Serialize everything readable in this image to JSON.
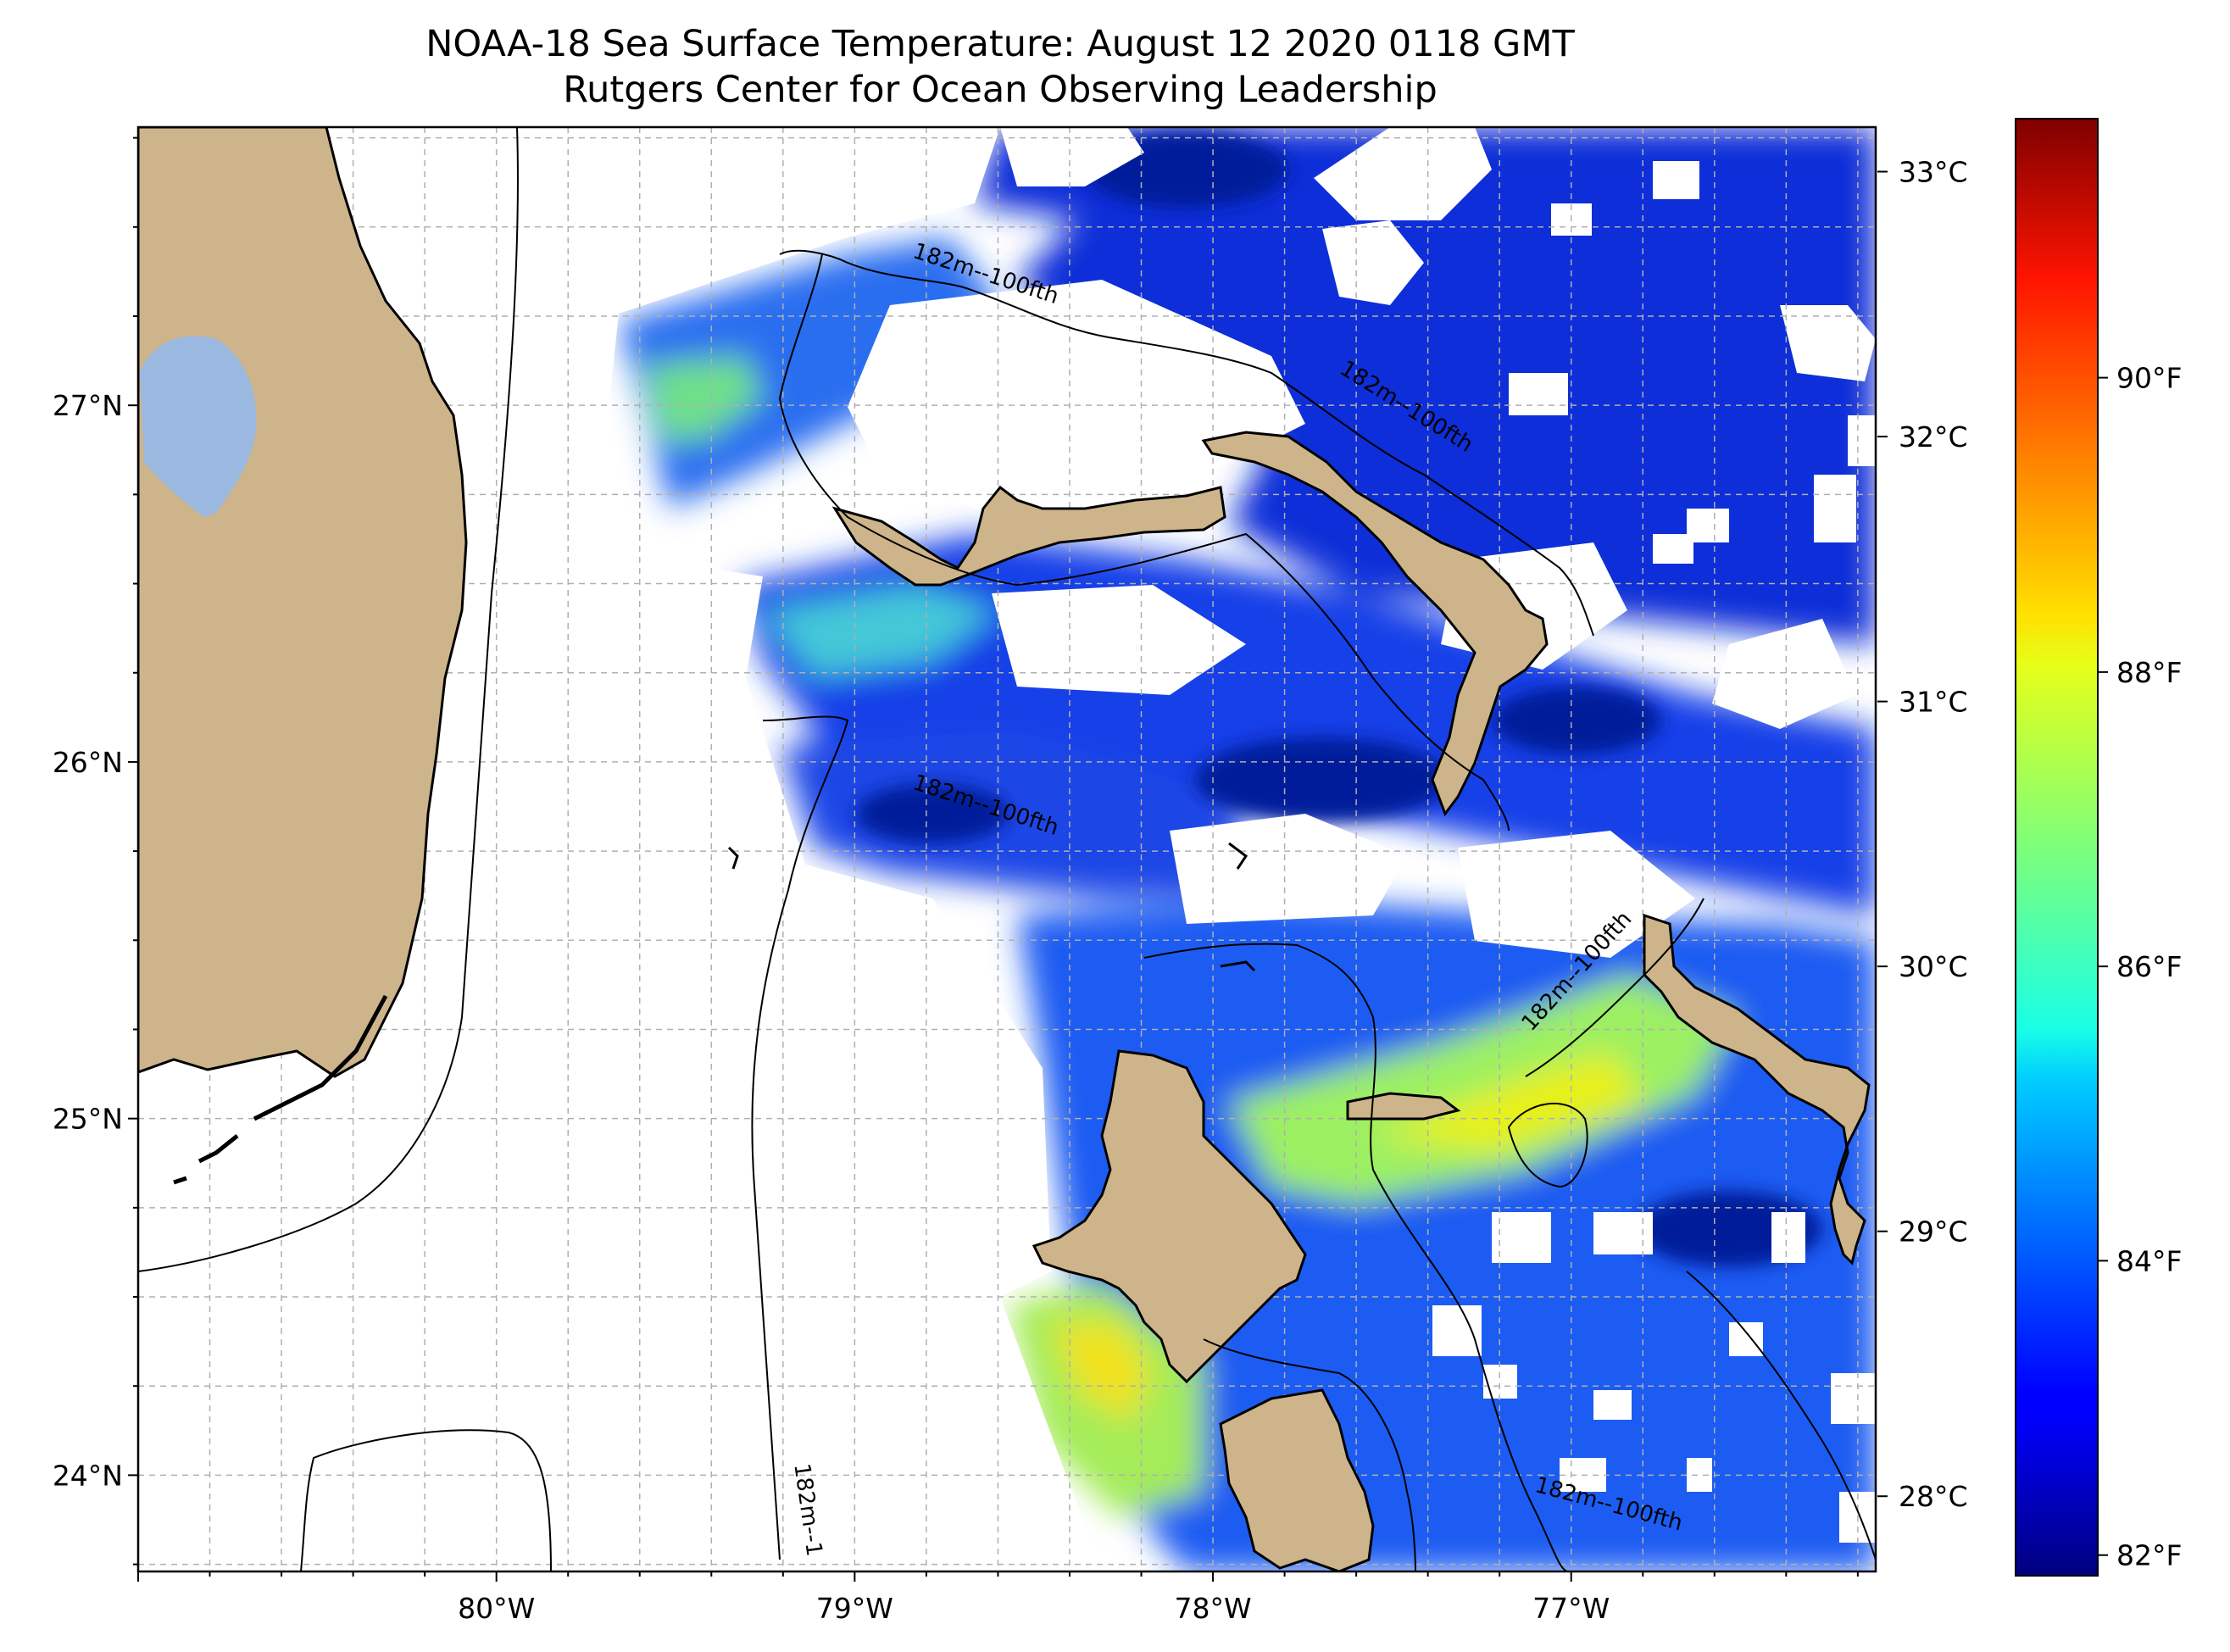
{
  "title": {
    "line1": "NOAA-18 Sea Surface Temperature: August 12 2020 0118 GMT",
    "line2": "Rutgers Center for Ocean Observing Leadership"
  },
  "map": {
    "longitude_range": [
      -81.0,
      -76.15
    ],
    "latitude_range": [
      23.73,
      27.78
    ],
    "lon_ticks": [
      {
        "value": -80,
        "label": "80°W"
      },
      {
        "value": -79,
        "label": "79°W"
      },
      {
        "value": -78,
        "label": "78°W"
      },
      {
        "value": -77,
        "label": "77°W"
      }
    ],
    "lat_ticks": [
      {
        "value": 27,
        "label": "27°N"
      },
      {
        "value": 26,
        "label": "26°N"
      },
      {
        "value": 25,
        "label": "25°N"
      },
      {
        "value": 24,
        "label": "24°N"
      }
    ],
    "gridlines": true,
    "contour_labels": [
      {
        "text": "182m--100fth",
        "lon": -78.64,
        "lat": 27.35
      },
      {
        "text": "182m--100fth",
        "lon": -77.47,
        "lat": 26.98
      },
      {
        "text": "182m--100fth",
        "lon": -78.64,
        "lat": 25.86
      },
      {
        "text": "182m--100fth",
        "lon": -76.97,
        "lat": 25.4
      },
      {
        "text": "182m--100fth",
        "lon": -76.9,
        "lat": 23.9
      },
      {
        "text": "182m--1",
        "lon": -79.15,
        "lat": 23.9
      }
    ],
    "colors": {
      "land": "#cdb48b",
      "lake": "#9bb8e0",
      "coastline": "#000000",
      "grid": "#b0b0b0"
    }
  },
  "colorbar": {
    "colormap": "jet",
    "range_celsius": [
      27.7,
      33.2
    ],
    "celsius_ticks": [
      {
        "value": 28,
        "label": "28°C"
      },
      {
        "value": 29,
        "label": "29°C"
      },
      {
        "value": 30,
        "label": "30°C"
      },
      {
        "value": 31,
        "label": "31°C"
      },
      {
        "value": 32,
        "label": "32°C"
      },
      {
        "value": 33,
        "label": "33°C"
      }
    ],
    "fahrenheit_ticks": [
      {
        "value": 82,
        "label": "82°F"
      },
      {
        "value": 84,
        "label": "84°F"
      },
      {
        "value": 86,
        "label": "86°F"
      },
      {
        "value": 88,
        "label": "88°F"
      },
      {
        "value": 90,
        "label": "90°F"
      }
    ]
  }
}
